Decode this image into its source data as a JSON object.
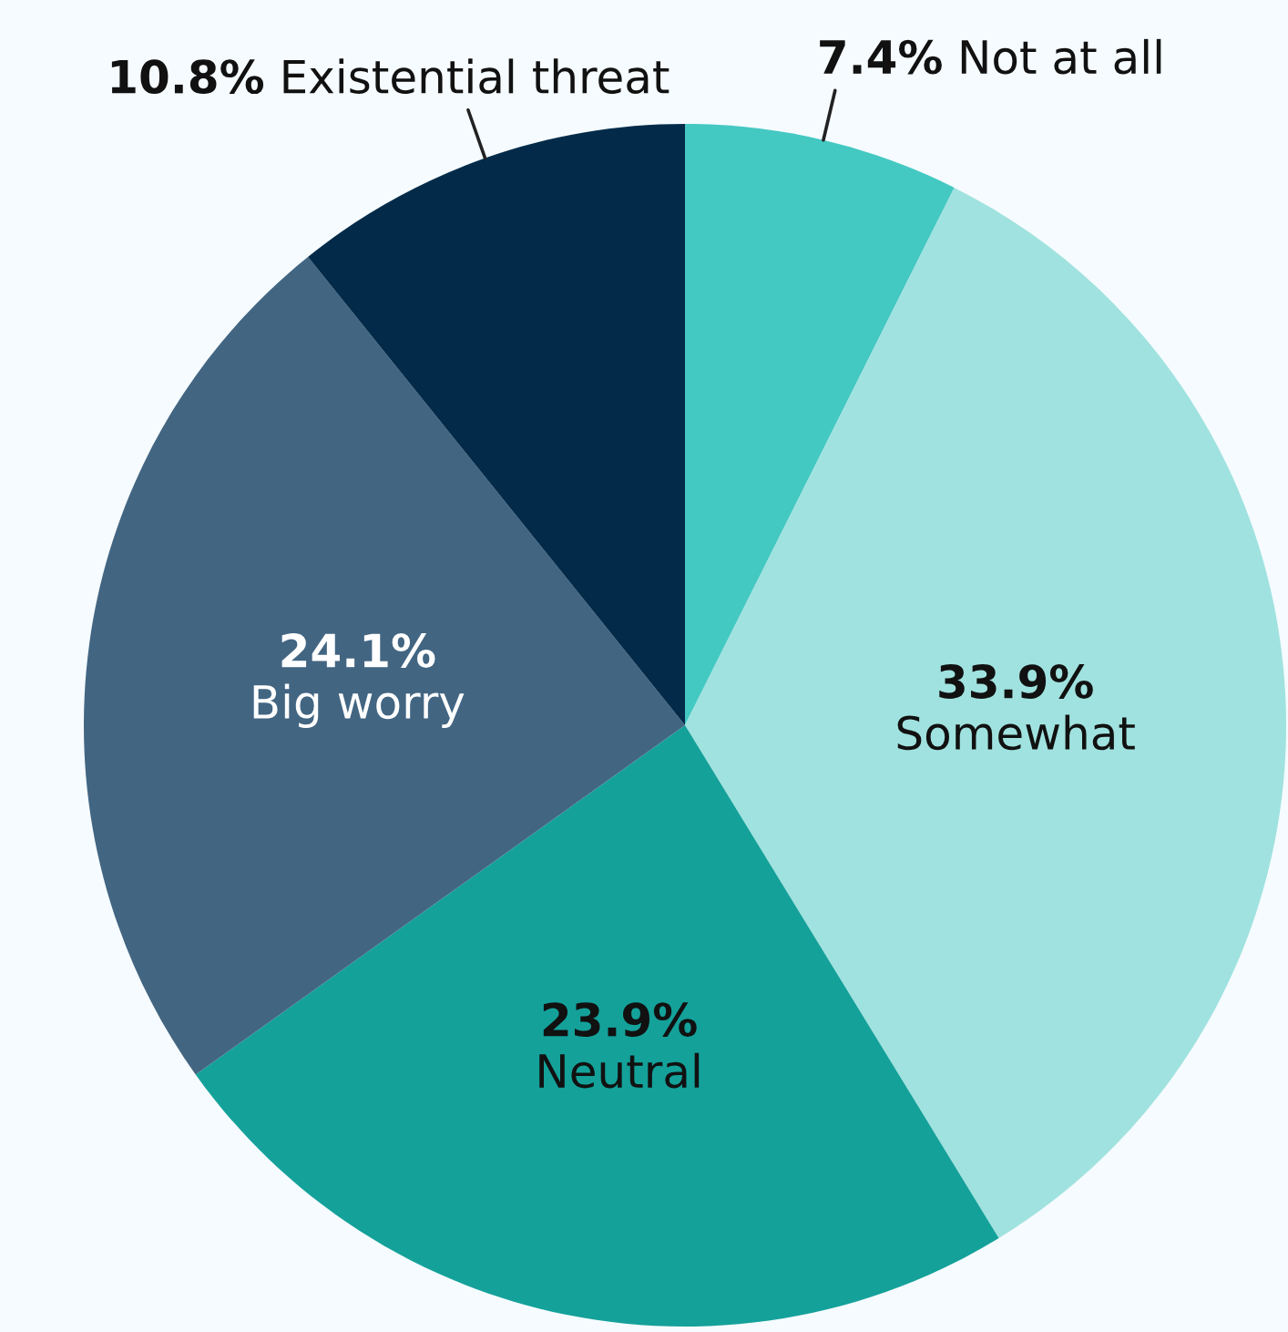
{
  "chart_data": {
    "type": "pie",
    "categories": [
      "Not at all",
      "Somewhat",
      "Neutral",
      "Big worry",
      "Existential threat"
    ],
    "values": [
      7.4,
      33.9,
      23.9,
      24.1,
      10.8
    ],
    "colors": [
      "#44c8c2",
      "#a0e2df",
      "#14a19a",
      "#426582",
      "#032b49"
    ],
    "value_labels": [
      "7.4%",
      "33.9%",
      "23.9%",
      "24.1%",
      "10.8%"
    ]
  }
}
